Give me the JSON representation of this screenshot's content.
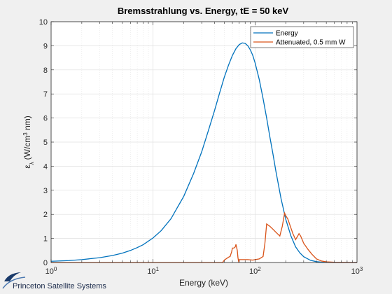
{
  "chart_data": {
    "type": "line",
    "title": "Bremsstrahlung vs. Energy, tE = 50 keV",
    "xlabel": "Energy (keV)",
    "ylabel_symbol": "ε",
    "ylabel_subscript": "λ",
    "ylabel_unit_a": "(W/cm",
    "ylabel_unit_sup": "3",
    "ylabel_unit_b": " nm)",
    "xscale": "log",
    "xlim": [
      1,
      1000
    ],
    "ylim": [
      0,
      10
    ],
    "x_ticks": [
      {
        "value": 1,
        "base": "10",
        "exp": "0"
      },
      {
        "value": 10,
        "base": "10",
        "exp": "1"
      },
      {
        "value": 100,
        "base": "10",
        "exp": "2"
      },
      {
        "value": 1000,
        "base": "10",
        "exp": "3"
      }
    ],
    "y_ticks": [
      "0",
      "1",
      "2",
      "3",
      "4",
      "5",
      "6",
      "7",
      "8",
      "9",
      "10"
    ],
    "grid": true,
    "legend_position": "top-right",
    "series": [
      {
        "name": "Energy",
        "color": "#0072bd",
        "x": [
          1,
          1.5,
          2,
          3,
          4,
          5,
          6,
          7,
          8,
          10,
          12,
          15,
          20,
          25,
          30,
          35,
          40,
          45,
          50,
          55,
          60,
          65,
          70,
          75,
          80,
          85,
          90,
          95,
          100,
          110,
          120,
          130,
          140,
          150,
          160,
          180,
          200,
          225,
          250,
          275,
          300,
          350,
          400,
          450,
          500,
          600,
          700,
          800,
          1000
        ],
        "y": [
          0.05,
          0.08,
          0.12,
          0.2,
          0.29,
          0.39,
          0.5,
          0.62,
          0.74,
          1.02,
          1.32,
          1.82,
          2.75,
          3.7,
          4.6,
          5.5,
          6.3,
          7.05,
          7.7,
          8.2,
          8.6,
          8.88,
          9.05,
          9.12,
          9.1,
          9.0,
          8.83,
          8.6,
          8.3,
          7.6,
          6.8,
          6.0,
          5.2,
          4.5,
          3.8,
          2.65,
          1.8,
          1.1,
          0.65,
          0.4,
          0.24,
          0.09,
          0.035,
          0.014,
          0.006,
          0.001,
          0,
          0,
          0
        ]
      },
      {
        "name": "Attenuated, 0.5 mm W",
        "color": "#d95319",
        "x": [
          1,
          40,
          48,
          50,
          52,
          55,
          57,
          59,
          60,
          62,
          63,
          64,
          65,
          67,
          68,
          69,
          69.5,
          70,
          85,
          95,
          100,
          110,
          120,
          125,
          130,
          140,
          150,
          160,
          175,
          185,
          195,
          200,
          210,
          220,
          235,
          250,
          262,
          270,
          280,
          290,
          300,
          330,
          360,
          400,
          450,
          500,
          600,
          1000
        ],
        "y": [
          0,
          0,
          0,
          0.1,
          0.15,
          0.22,
          0.25,
          0.45,
          0.6,
          0.6,
          0.62,
          0.65,
          0.75,
          0.5,
          0.2,
          0.05,
          0,
          0.12,
          0.12,
          0.1,
          0.12,
          0.15,
          0.25,
          0.8,
          1.6,
          1.5,
          1.38,
          1.26,
          1.1,
          1.5,
          2.05,
          1.95,
          1.8,
          1.55,
          1.2,
          0.95,
          1.1,
          1.2,
          1.1,
          0.95,
          0.8,
          0.55,
          0.35,
          0.15,
          0.06,
          0.03,
          0.01,
          0
        ]
      }
    ]
  },
  "branding": {
    "logo_text": "Princeton Satellite Systems",
    "logo_color": "#1a3a6a"
  }
}
